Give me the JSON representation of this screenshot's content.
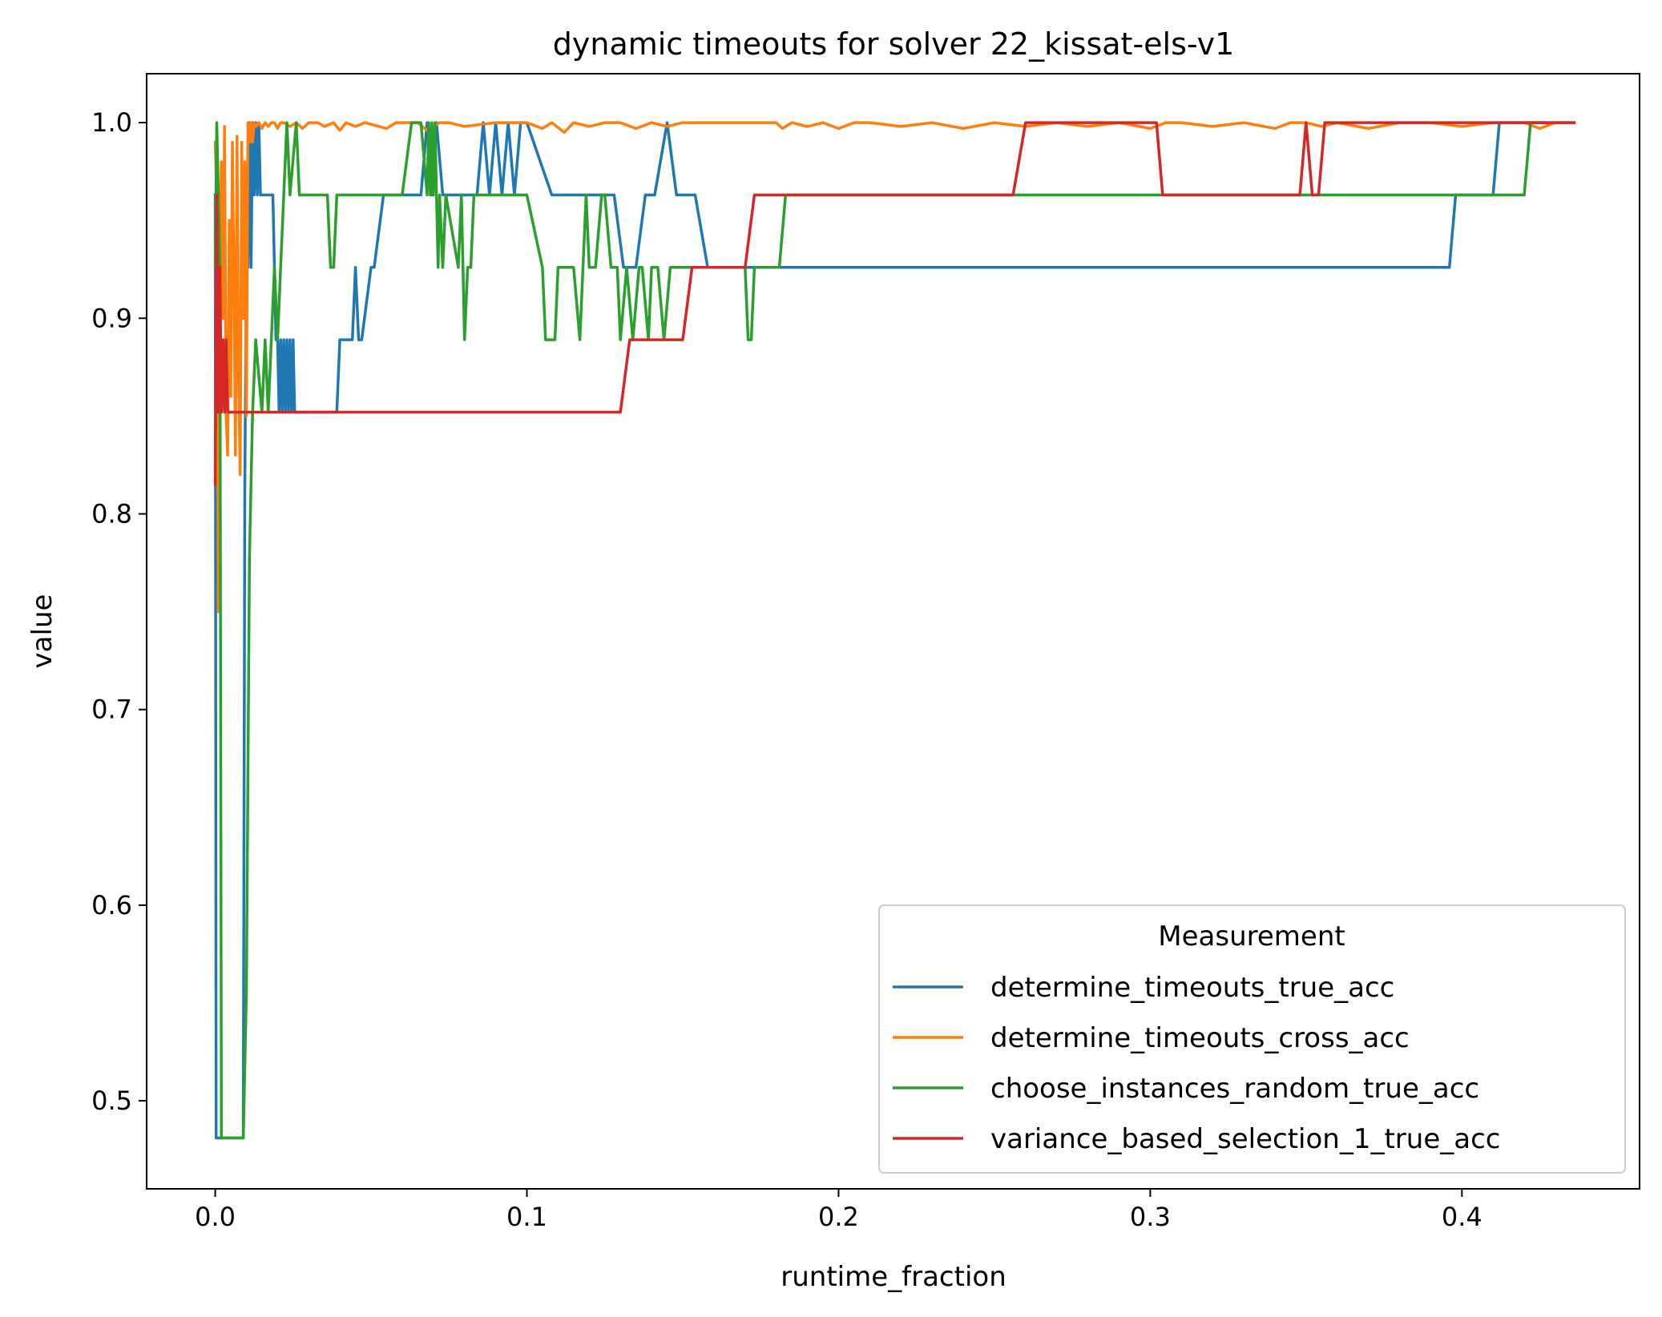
{
  "chart_data": {
    "type": "line",
    "title": "dynamic timeouts for solver 22_kissat-els-v1",
    "xlabel": "runtime_fraction",
    "ylabel": "value",
    "xlim": [
      -0.022,
      0.457
    ],
    "ylim": [
      0.455,
      1.025
    ],
    "xticks": [
      0.0,
      0.1,
      0.2,
      0.3,
      0.4
    ],
    "xtick_labels": [
      "0.0",
      "0.1",
      "0.2",
      "0.3",
      "0.4"
    ],
    "yticks": [
      0.5,
      0.6,
      0.7,
      0.8,
      0.9,
      1.0
    ],
    "ytick_labels": [
      "0.5",
      "0.6",
      "0.7",
      "0.8",
      "0.9",
      "1.0"
    ],
    "grid": false,
    "legend": {
      "title": "Measurement",
      "placement": "lower-right"
    },
    "series": [
      {
        "name": "determine_timeouts_true_acc",
        "color": "#1f77b4",
        "x": [
          0.0,
          0.0003,
          0.0006,
          0.0009,
          0.009,
          0.0095,
          0.01,
          0.0105,
          0.011,
          0.0115,
          0.012,
          0.0125,
          0.013,
          0.0135,
          0.014,
          0.0145,
          0.015,
          0.0155,
          0.016,
          0.0185,
          0.019,
          0.0195,
          0.02,
          0.0205,
          0.021,
          0.0215,
          0.022,
          0.0225,
          0.023,
          0.0235,
          0.024,
          0.0245,
          0.025,
          0.0255,
          0.026,
          0.039,
          0.04,
          0.044,
          0.045,
          0.046,
          0.047,
          0.05,
          0.051,
          0.054,
          0.055,
          0.066,
          0.068,
          0.0695,
          0.071,
          0.073,
          0.075,
          0.084,
          0.086,
          0.088,
          0.09,
          0.092,
          0.094,
          0.096,
          0.098,
          0.1,
          0.108,
          0.11,
          0.12,
          0.128,
          0.131,
          0.135,
          0.138,
          0.141,
          0.145,
          0.148,
          0.154,
          0.158,
          0.396,
          0.398,
          0.41,
          0.412,
          0.436
        ],
        "y": [
          0.963,
          0.481,
          0.481,
          0.481,
          0.481,
          0.815,
          0.926,
          0.926,
          1.0,
          0.926,
          1.0,
          0.963,
          1.0,
          0.963,
          1.0,
          0.963,
          0.963,
          0.963,
          0.963,
          0.963,
          0.926,
          0.889,
          0.889,
          0.852,
          0.889,
          0.852,
          0.889,
          0.852,
          0.889,
          0.852,
          0.889,
          0.852,
          0.889,
          0.852,
          0.852,
          0.852,
          0.889,
          0.889,
          0.926,
          0.889,
          0.889,
          0.926,
          0.926,
          0.963,
          0.963,
          0.963,
          1.0,
          0.963,
          1.0,
          0.963,
          0.963,
          0.963,
          1.0,
          0.963,
          1.0,
          0.963,
          1.0,
          0.963,
          1.0,
          1.0,
          0.963,
          0.963,
          0.963,
          0.963,
          0.926,
          0.926,
          0.963,
          0.963,
          1.0,
          0.963,
          0.963,
          0.926,
          0.926,
          0.963,
          0.963,
          1.0,
          1.0
        ]
      },
      {
        "name": "determine_timeouts_cross_acc",
        "color": "#ff7f0e",
        "x": [
          0.0,
          0.0005,
          0.001,
          0.0015,
          0.002,
          0.0025,
          0.003,
          0.0035,
          0.004,
          0.0045,
          0.005,
          0.0055,
          0.006,
          0.0065,
          0.007,
          0.0075,
          0.008,
          0.0085,
          0.009,
          0.0095,
          0.01,
          0.0105,
          0.011,
          0.0115,
          0.012,
          0.0125,
          0.013,
          0.014,
          0.015,
          0.016,
          0.017,
          0.018,
          0.019,
          0.02,
          0.021,
          0.022,
          0.024,
          0.026,
          0.028,
          0.03,
          0.033,
          0.035,
          0.038,
          0.04,
          0.042,
          0.045,
          0.048,
          0.055,
          0.058,
          0.065,
          0.068,
          0.072,
          0.075,
          0.08,
          0.09,
          0.1,
          0.105,
          0.108,
          0.112,
          0.115,
          0.12,
          0.125,
          0.13,
          0.135,
          0.14,
          0.145,
          0.15,
          0.16,
          0.18,
          0.182,
          0.185,
          0.19,
          0.195,
          0.2,
          0.205,
          0.21,
          0.22,
          0.23,
          0.24,
          0.25,
          0.26,
          0.27,
          0.28,
          0.29,
          0.3,
          0.305,
          0.31,
          0.32,
          0.33,
          0.34,
          0.345,
          0.35,
          0.355,
          0.36,
          0.37,
          0.38,
          0.39,
          0.4,
          0.41,
          0.42,
          0.425,
          0.43,
          0.436
        ],
        "y": [
          0.99,
          0.96,
          0.75,
          0.93,
          0.98,
          0.9,
          0.998,
          0.85,
          0.83,
          0.95,
          0.86,
          0.99,
          0.92,
          0.83,
          0.993,
          0.87,
          0.82,
          0.99,
          0.9,
          0.98,
          0.85,
          1.0,
          0.99,
          1.0,
          0.99,
          1.0,
          0.998,
          1.0,
          0.997,
          1.0,
          0.998,
          1.0,
          1.0,
          0.997,
          1.0,
          1.0,
          0.998,
          1.0,
          0.997,
          1.0,
          1.0,
          0.998,
          1.0,
          0.996,
          1.0,
          0.998,
          1.0,
          0.997,
          1.0,
          1.0,
          0.996,
          1.0,
          1.0,
          0.998,
          1.0,
          1.0,
          0.997,
          1.0,
          0.995,
          1.0,
          0.998,
          1.0,
          1.0,
          0.997,
          1.0,
          0.998,
          1.0,
          1.0,
          1.0,
          0.997,
          1.0,
          0.998,
          1.0,
          0.997,
          1.0,
          1.0,
          0.998,
          1.0,
          0.997,
          1.0,
          0.998,
          1.0,
          0.998,
          1.0,
          0.997,
          1.0,
          1.0,
          0.998,
          1.0,
          0.997,
          1.0,
          1.0,
          0.998,
          1.0,
          0.997,
          1.0,
          1.0,
          0.998,
          1.0,
          1.0,
          0.997,
          1.0,
          1.0
        ]
      },
      {
        "name": "choose_instances_random_true_acc",
        "color": "#2ca02c",
        "x": [
          0.0,
          0.0005,
          0.001,
          0.0015,
          0.002,
          0.003,
          0.004,
          0.0045,
          0.005,
          0.009,
          0.01,
          0.011,
          0.012,
          0.013,
          0.015,
          0.016,
          0.017,
          0.018,
          0.019,
          0.02,
          0.021,
          0.022,
          0.023,
          0.024,
          0.026,
          0.027,
          0.028,
          0.029,
          0.03,
          0.036,
          0.037,
          0.038,
          0.039,
          0.06,
          0.063,
          0.065,
          0.066,
          0.068,
          0.0685,
          0.069,
          0.0695,
          0.07,
          0.0705,
          0.071,
          0.0715,
          0.072,
          0.073,
          0.074,
          0.078,
          0.079,
          0.08,
          0.081,
          0.082,
          0.083,
          0.085,
          0.087,
          0.089,
          0.09,
          0.1,
          0.105,
          0.106,
          0.109,
          0.11,
          0.115,
          0.117,
          0.119,
          0.12,
          0.122,
          0.124,
          0.125,
          0.127,
          0.129,
          0.13,
          0.132,
          0.134,
          0.136,
          0.137,
          0.139,
          0.14,
          0.142,
          0.144,
          0.146,
          0.148,
          0.15,
          0.152,
          0.154,
          0.156,
          0.158,
          0.17,
          0.171,
          0.172,
          0.173,
          0.174,
          0.175,
          0.178,
          0.181,
          0.183,
          0.185,
          0.42,
          0.422,
          0.426
        ],
        "y": [
          0.926,
          1.0,
          0.963,
          0.926,
          0.481,
          0.481,
          0.481,
          0.481,
          0.481,
          0.481,
          0.556,
          0.778,
          0.852,
          0.889,
          0.852,
          0.889,
          0.852,
          0.889,
          0.926,
          0.889,
          0.926,
          0.963,
          1.0,
          0.963,
          1.0,
          0.963,
          0.963,
          0.963,
          0.963,
          0.963,
          0.926,
          0.926,
          0.963,
          0.963,
          1.0,
          1.0,
          1.0,
          0.963,
          1.0,
          0.963,
          1.0,
          0.963,
          1.0,
          0.963,
          0.926,
          0.963,
          0.926,
          0.963,
          0.926,
          0.963,
          0.889,
          0.926,
          0.926,
          0.963,
          0.963,
          0.963,
          0.963,
          0.963,
          0.963,
          0.926,
          0.889,
          0.889,
          0.926,
          0.926,
          0.889,
          0.963,
          0.926,
          0.926,
          0.963,
          0.963,
          0.926,
          0.926,
          0.889,
          0.926,
          0.889,
          0.926,
          0.926,
          0.889,
          0.926,
          0.926,
          0.889,
          0.926,
          0.926,
          0.926,
          0.926,
          0.926,
          0.926,
          0.926,
          0.926,
          0.889,
          0.889,
          0.926,
          0.926,
          0.926,
          0.926,
          0.926,
          0.963,
          0.963,
          0.963,
          1.0,
          1.0
        ]
      },
      {
        "name": "variance_based_selection_1_true_acc",
        "color": "#d62728",
        "x": [
          0.0,
          0.0005,
          0.001,
          0.0015,
          0.002,
          0.0025,
          0.003,
          0.0035,
          0.004,
          0.0045,
          0.005,
          0.02,
          0.03,
          0.04,
          0.13,
          0.133,
          0.15,
          0.153,
          0.17,
          0.173,
          0.2,
          0.256,
          0.26,
          0.302,
          0.304,
          0.348,
          0.35,
          0.352,
          0.354,
          0.356,
          0.436
        ],
        "y": [
          0.815,
          0.963,
          0.852,
          0.926,
          0.852,
          0.889,
          0.852,
          0.889,
          0.852,
          0.852,
          0.852,
          0.852,
          0.852,
          0.852,
          0.852,
          0.889,
          0.889,
          0.926,
          0.926,
          0.963,
          0.963,
          0.963,
          1.0,
          1.0,
          0.963,
          0.963,
          1.0,
          0.963,
          0.963,
          1.0,
          1.0
        ]
      }
    ]
  }
}
